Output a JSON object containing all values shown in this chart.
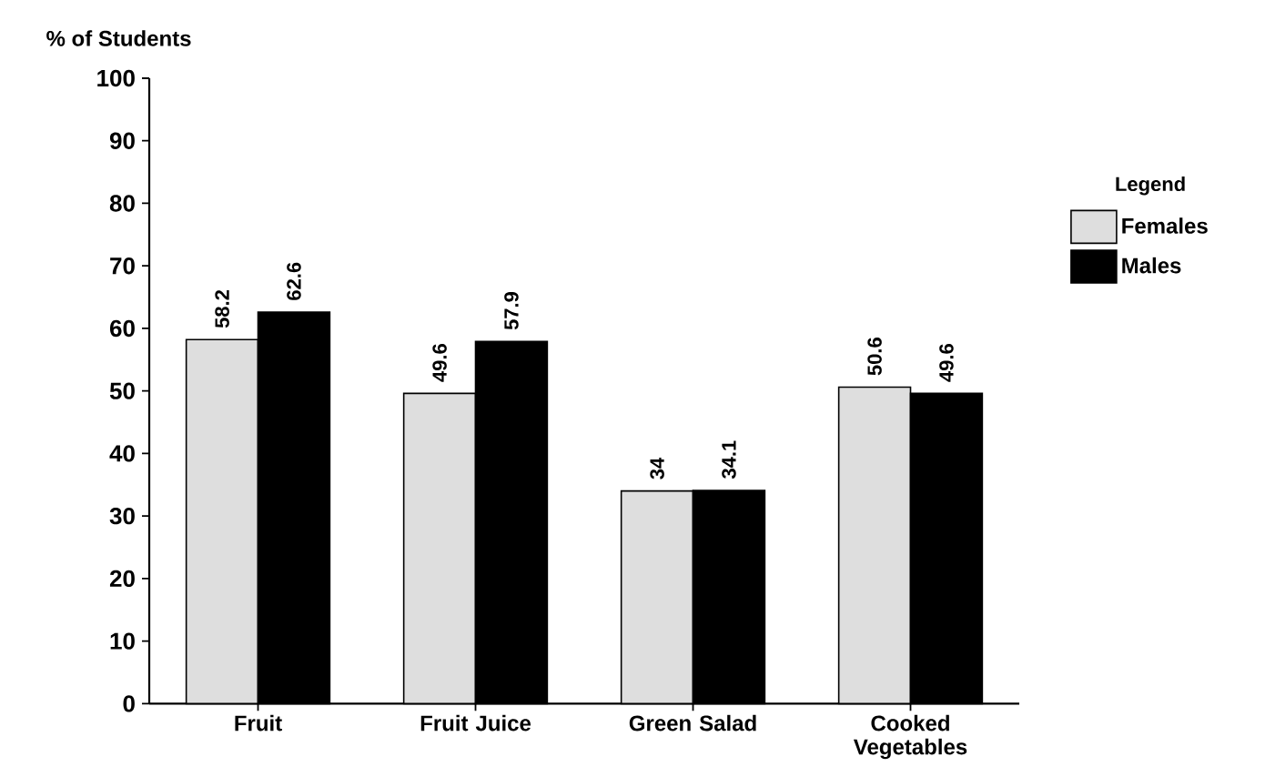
{
  "chart_data": {
    "type": "bar",
    "ylabel": "% of Students",
    "legend_title": "Legend",
    "categories": [
      "Fruit",
      "Fruit Juice",
      "Green Salad",
      "Cooked Vegetables"
    ],
    "series": [
      {
        "name": "Females",
        "color": "#dedede",
        "values": [
          58.2,
          49.6,
          34,
          50.6
        ]
      },
      {
        "name": "Males",
        "color": "#000000",
        "values": [
          62.6,
          57.9,
          34.1,
          49.6
        ]
      }
    ],
    "ylim": [
      0,
      100
    ],
    "yticks": [
      0,
      10,
      20,
      30,
      40,
      50,
      60,
      70,
      80,
      90,
      100
    ],
    "data_labels": true,
    "legend": "right"
  }
}
